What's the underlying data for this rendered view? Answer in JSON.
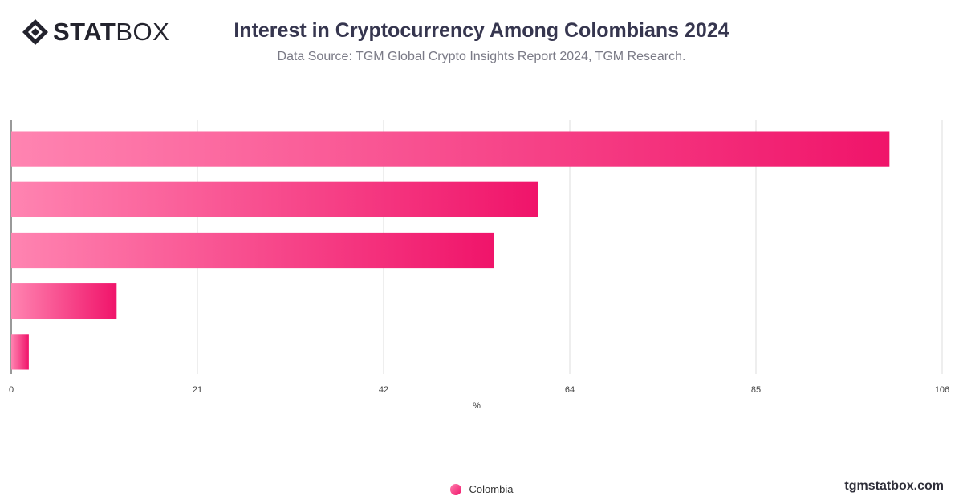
{
  "header": {
    "logo_bold": "STAT",
    "logo_light": "BOX",
    "title": "Interest in Cryptocurrency Among Colombians 2024",
    "subtitle": "Data Source: TGM Global Crypto Insights Report 2024, TGM Research."
  },
  "chart_data": {
    "type": "bar",
    "orientation": "horizontal",
    "categories": [
      "",
      "",
      "",
      "",
      ""
    ],
    "series": [
      {
        "name": "Colombia",
        "values": [
          100,
          60,
          55,
          12,
          2
        ]
      }
    ],
    "xlabel": "%",
    "ylabel": "",
    "xlim": [
      0,
      106
    ],
    "xticks": [
      "0",
      "21",
      "42",
      "64",
      "85",
      "106"
    ],
    "grid": true,
    "legend_position": "bottom-center",
    "colors": {
      "bar_start": "#ff84b1",
      "bar_end": "#f0146a",
      "grid": "#dcdcdc",
      "axis": "#333333"
    }
  },
  "legend": {
    "label": "Colombia"
  },
  "footer": {
    "watermark": "tgmstatbox.com"
  }
}
